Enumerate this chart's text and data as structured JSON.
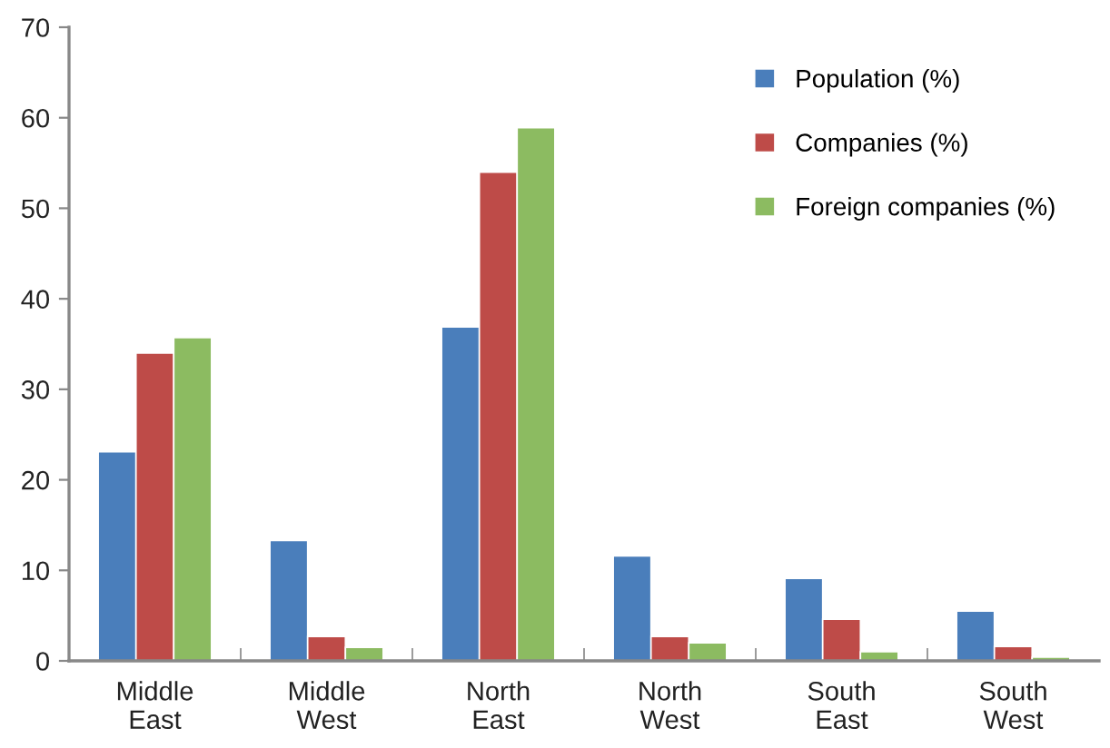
{
  "chart_data": {
    "type": "bar",
    "categories": [
      "Middle\nEast",
      "Middle\nWest",
      "North\nEast",
      "North\nWest",
      "South\nEast",
      "South\nWest"
    ],
    "series": [
      {
        "name": "Population (%)",
        "color": "#4a7ebb",
        "values": [
          23.1,
          13.3,
          36.9,
          11.6,
          9.1,
          5.5
        ]
      },
      {
        "name": "Companies (%)",
        "color": "#be4b48",
        "values": [
          34.0,
          2.7,
          54.0,
          2.7,
          4.6,
          1.6
        ]
      },
      {
        "name": "Foreign companies (%)",
        "color": "#8cbb61",
        "values": [
          35.7,
          1.5,
          58.9,
          2.0,
          1.0,
          0.4
        ]
      }
    ],
    "ylim": [
      0,
      70
    ],
    "yticks": [
      0,
      10,
      20,
      30,
      40,
      50,
      60,
      70
    ],
    "grid": false,
    "legend": "top right"
  }
}
